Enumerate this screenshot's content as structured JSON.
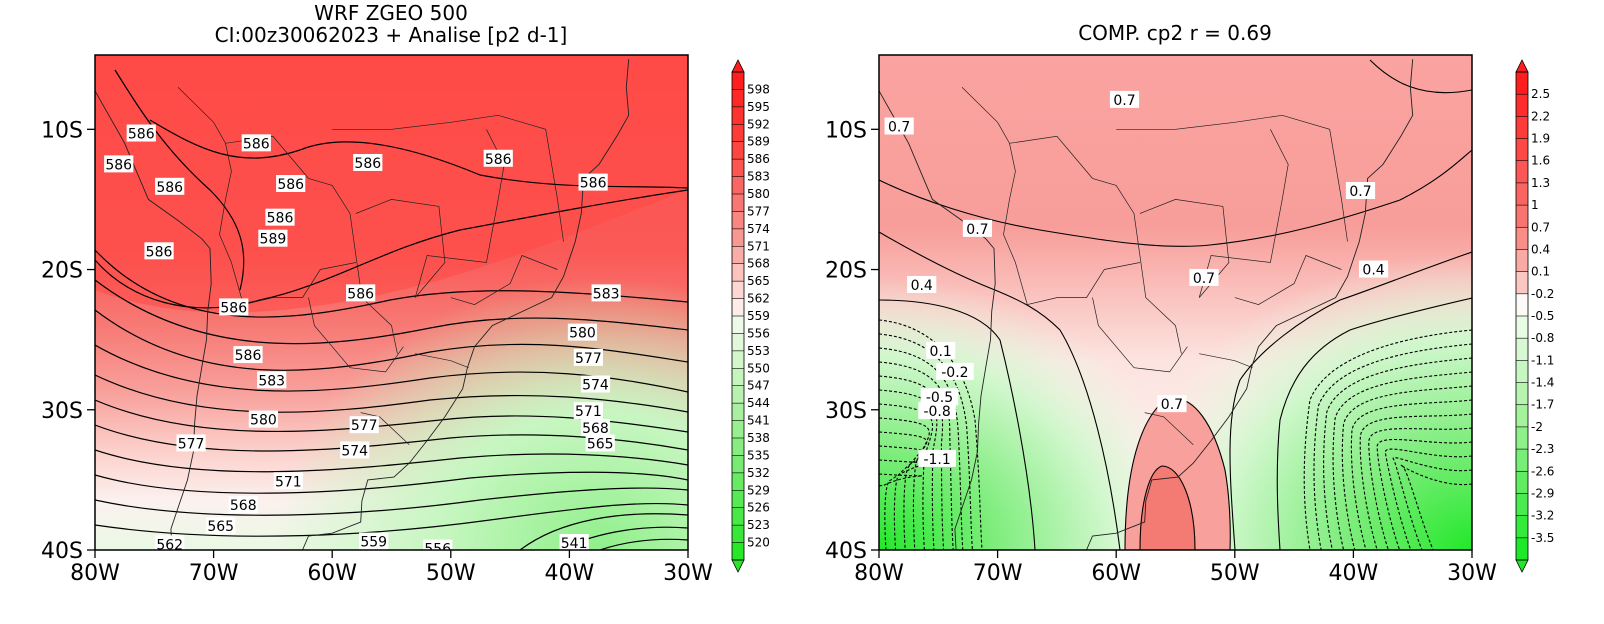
{
  "panels": [
    {
      "id": "left",
      "title_line1": "WRF ZGEO 500",
      "title_line2": "CI:00z30062023 + Analise  [p2 d-1]",
      "x_ticks": [
        "80W",
        "70W",
        "60W",
        "50W",
        "40W",
        "30W"
      ],
      "y_ticks": [
        "10S",
        "20S",
        "30S",
        "40S"
      ],
      "colorbar_labels": [
        "598",
        "595",
        "592",
        "589",
        "586",
        "583",
        "580",
        "577",
        "574",
        "571",
        "568",
        "565",
        "562",
        "559",
        "556",
        "553",
        "550",
        "547",
        "544",
        "541",
        "538",
        "535",
        "532",
        "529",
        "526",
        "523",
        "520"
      ],
      "contour_labels": [
        {
          "text": "586",
          "lon": -76.1,
          "lat": -10.3
        },
        {
          "text": "586",
          "lon": -66.4,
          "lat": -11.0
        },
        {
          "text": "586",
          "lon": -57.0,
          "lat": -12.4
        },
        {
          "text": "586",
          "lon": -46.0,
          "lat": -12.1
        },
        {
          "text": "586",
          "lon": -38.0,
          "lat": -13.8
        },
        {
          "text": "586",
          "lon": -78.0,
          "lat": -12.5
        },
        {
          "text": "586",
          "lon": -73.7,
          "lat": -14.1
        },
        {
          "text": "586",
          "lon": -63.5,
          "lat": -13.9
        },
        {
          "text": "586",
          "lon": -64.4,
          "lat": -16.3
        },
        {
          "text": "589",
          "lon": -65.0,
          "lat": -17.8
        },
        {
          "text": "586",
          "lon": -74.6,
          "lat": -18.7
        },
        {
          "text": "586",
          "lon": -57.6,
          "lat": -21.7
        },
        {
          "text": "586",
          "lon": -68.3,
          "lat": -22.7
        },
        {
          "text": "583",
          "lon": -36.9,
          "lat": -21.7
        },
        {
          "text": "580",
          "lon": -38.9,
          "lat": -24.5
        },
        {
          "text": "586",
          "lon": -67.1,
          "lat": -26.1
        },
        {
          "text": "577",
          "lon": -38.4,
          "lat": -26.3
        },
        {
          "text": "583",
          "lon": -65.1,
          "lat": -27.9
        },
        {
          "text": "574",
          "lon": -37.8,
          "lat": -28.2
        },
        {
          "text": "580",
          "lon": -65.8,
          "lat": -30.7
        },
        {
          "text": "577",
          "lon": -57.3,
          "lat": -31.1
        },
        {
          "text": "571",
          "lon": -38.4,
          "lat": -30.1
        },
        {
          "text": "568",
          "lon": -37.8,
          "lat": -31.3
        },
        {
          "text": "565",
          "lon": -37.4,
          "lat": -32.4
        },
        {
          "text": "577",
          "lon": -71.9,
          "lat": -32.4
        },
        {
          "text": "574",
          "lon": -58.1,
          "lat": -32.9
        },
        {
          "text": "571",
          "lon": -63.7,
          "lat": -35.1
        },
        {
          "text": "568",
          "lon": -67.5,
          "lat": -36.8
        },
        {
          "text": "565",
          "lon": -69.4,
          "lat": -38.3
        },
        {
          "text": "562",
          "lon": -73.7,
          "lat": -39.6
        },
        {
          "text": "559",
          "lon": -56.5,
          "lat": -39.4
        },
        {
          "text": "556",
          "lon": -51.1,
          "lat": -39.9
        },
        {
          "text": "541",
          "lon": -39.6,
          "lat": -39.5
        }
      ]
    },
    {
      "id": "right",
      "title_line1": "COMP. cp2  r =  0.69",
      "x_ticks": [
        "80W",
        "70W",
        "60W",
        "50W",
        "40W",
        "30W"
      ],
      "y_ticks": [
        "10S",
        "20S",
        "30S",
        "40S"
      ],
      "colorbar_labels": [
        "2.5",
        "2.2",
        "1.9",
        "1.6",
        "1.3",
        "1",
        "0.7",
        "0.4",
        "0.1",
        "-0.2",
        "-0.5",
        "-0.8",
        "-1.1",
        "-1.4",
        "-1.7",
        "-2",
        "-2.3",
        "-2.6",
        "-2.9",
        "-3.2",
        "-3.5"
      ],
      "contour_labels": [
        {
          "text": "0.7",
          "lon": -78.3,
          "lat": -9.8
        },
        {
          "text": "0.7",
          "lon": -59.3,
          "lat": -7.9
        },
        {
          "text": "0.7",
          "lon": -39.4,
          "lat": -14.4
        },
        {
          "text": "0.7",
          "lon": -71.7,
          "lat": -17.1
        },
        {
          "text": "0.7",
          "lon": -52.6,
          "lat": -20.6
        },
        {
          "text": "0.4",
          "lon": -38.3,
          "lat": -20.0
        },
        {
          "text": "0.4",
          "lon": -76.4,
          "lat": -21.1
        },
        {
          "text": "0.1",
          "lon": -74.8,
          "lat": -25.8
        },
        {
          "text": "-0.2",
          "lon": -73.6,
          "lat": -27.3
        },
        {
          "text": "-0.5",
          "lon": -74.9,
          "lat": -29.1
        },
        {
          "text": "-0.8",
          "lon": -75.1,
          "lat": -30.1
        },
        {
          "text": "0.7",
          "lon": -55.3,
          "lat": -29.6
        },
        {
          "text": "-1.1",
          "lon": -75.1,
          "lat": -33.5
        }
      ]
    }
  ]
}
